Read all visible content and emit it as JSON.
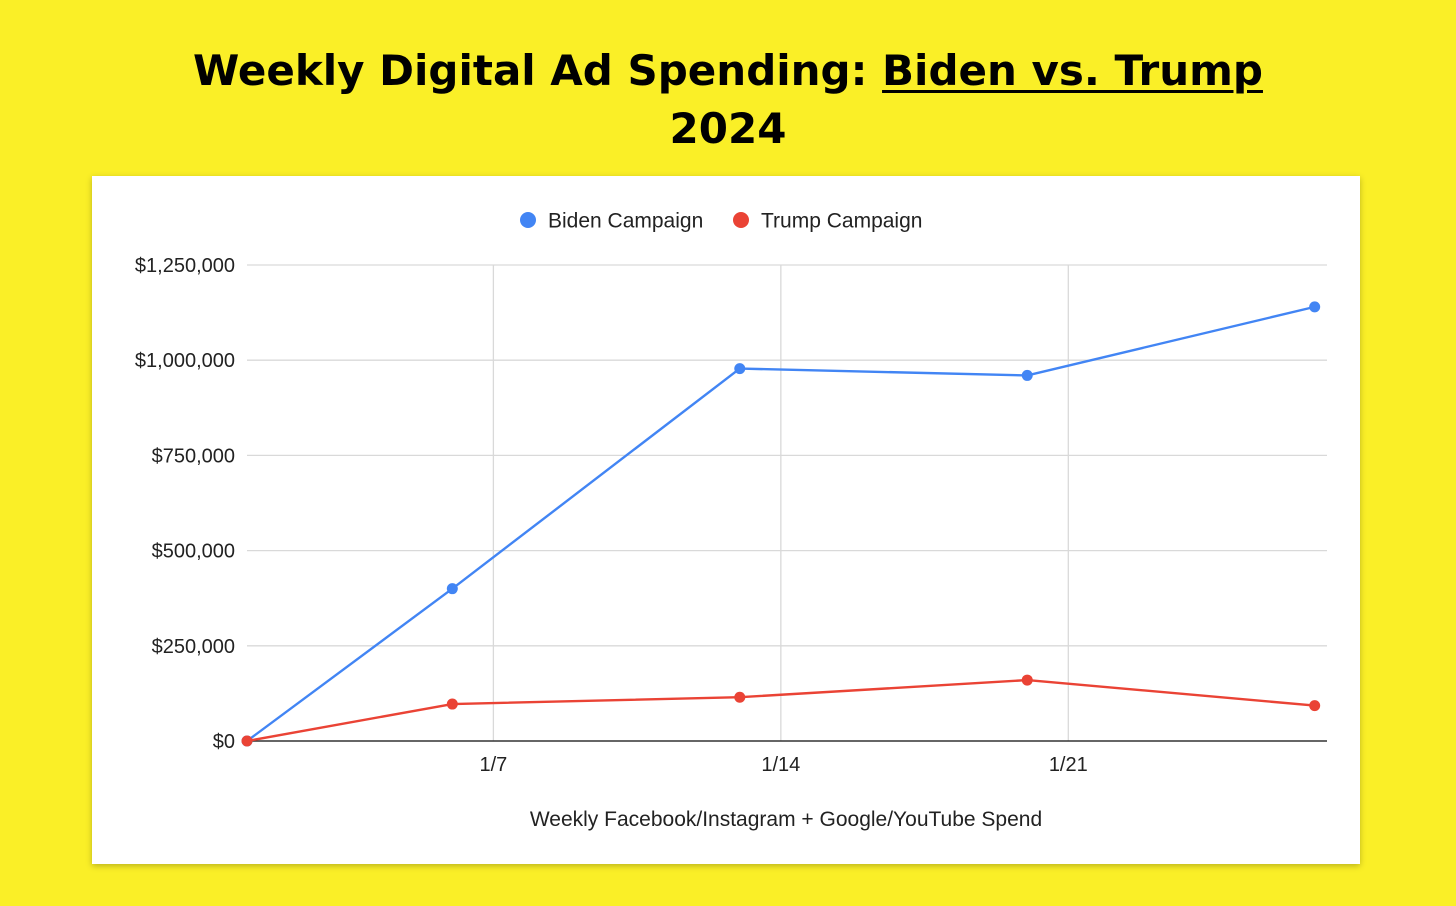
{
  "page": {
    "title_part1": "Weekly Digital Ad Spending: ",
    "title_part2": "Biden vs. Trump",
    "title_part3": "2024"
  },
  "chart_data": {
    "type": "line",
    "title": "Weekly Digital Ad Spending: Biden vs. Trump 2024",
    "xlabel": "Weekly Facebook/Instagram + Google/YouTube Spend",
    "ylabel": "",
    "x_ticks": [
      {
        "day": 7,
        "label": "1/7"
      },
      {
        "day": 14,
        "label": "1/14"
      },
      {
        "day": 21,
        "label": "1/21"
      }
    ],
    "y_ticks": [
      {
        "value": 0,
        "label": "$0"
      },
      {
        "value": 250000,
        "label": "$250,000"
      },
      {
        "value": 500000,
        "label": "$500,000"
      },
      {
        "value": 750000,
        "label": "$750,000"
      },
      {
        "value": 1000000,
        "label": "$1,000,000"
      },
      {
        "value": 1250000,
        "label": "$1,250,000"
      }
    ],
    "xlim": [
      1,
      27.3
    ],
    "ylim": [
      0,
      1250000
    ],
    "legend_position": "top",
    "grid": true,
    "x": [
      1,
      6,
      13,
      20,
      27
    ],
    "series": [
      {
        "name": "Biden Campaign",
        "color": "#4285f4",
        "values": [
          0,
          400000,
          978000,
          960000,
          1140000
        ]
      },
      {
        "name": "Trump Campaign",
        "color": "#ea4335",
        "values": [
          0,
          97000,
          115000,
          160000,
          93000
        ]
      }
    ]
  }
}
